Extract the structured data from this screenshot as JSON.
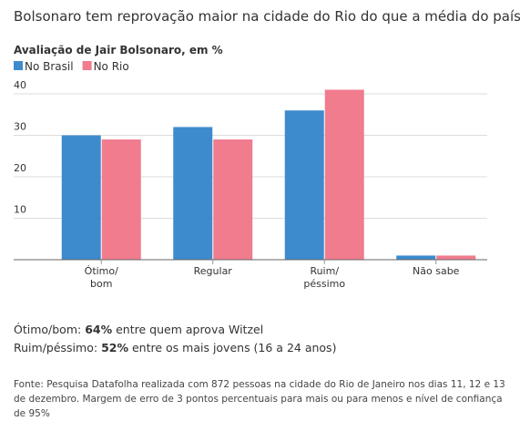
{
  "chart_data": {
    "type": "bar",
    "title": "Bolsonaro tem reprovação maior na cidade do Rio do que a média do país",
    "subtitle": "Avaliação de Jair Bolsonaro, em %",
    "categories": [
      "Ótimo/\nbom",
      "Regular",
      "Ruim/\npéssimo",
      "Não sabe"
    ],
    "series": [
      {
        "name": "No Brasil",
        "color": "#3d8bcd",
        "values": [
          30,
          32,
          36,
          1
        ]
      },
      {
        "name": "No Rio",
        "color": "#f07c8e",
        "values": [
          29,
          29,
          41,
          1
        ]
      }
    ],
    "ylim": [
      0,
      40
    ],
    "yticks": [
      10,
      20,
      30,
      40
    ],
    "grid": true,
    "notes": [
      {
        "label": "Ótimo/bom:",
        "highlight": "64%",
        "text": "entre quem aprova Witzel"
      },
      {
        "label": "Ruim/péssimo:",
        "highlight": "52%",
        "text": "entre os mais jovens (16 a 24 anos)"
      }
    ],
    "source": "Fonte: Pesquisa Datafolha realizada com 872 pessoas na cidade do Rio de Janeiro nos dias 11, 12 e 13 de dezembro. Margem de erro de 3 pontos percentuais para mais ou para menos e nível de confiança de 95%"
  }
}
